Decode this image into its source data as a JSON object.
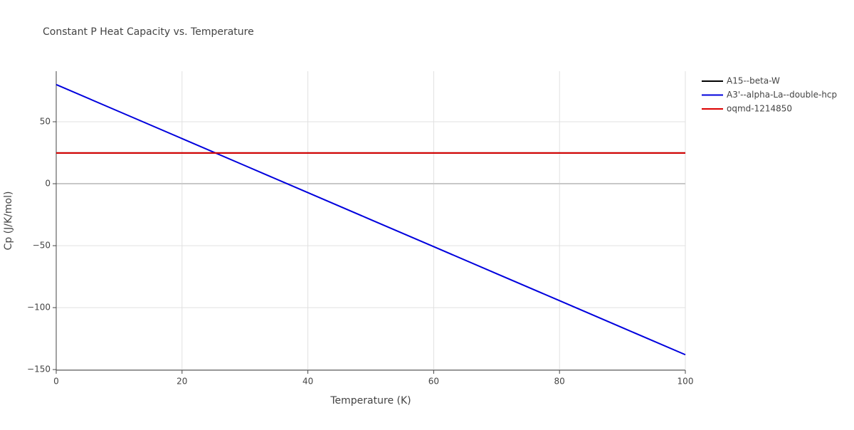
{
  "chart_data": {
    "type": "line",
    "title": "Constant P Heat Capacity vs. Temperature",
    "x_label": "Temperature (K)",
    "y_label": "Cp (J/K/mol)",
    "x": [
      0,
      10,
      20,
      30,
      40,
      50,
      60,
      70,
      80,
      90,
      100
    ],
    "series": [
      {
        "name": "A15--beta-W",
        "color": "#000000",
        "values": [
          24.8,
          24.8,
          24.8,
          24.8,
          24.8,
          24.8,
          24.8,
          24.8,
          24.8,
          24.8,
          24.8
        ]
      },
      {
        "name": "A3'--alpha-La--double-hcp",
        "color": "#0000dd",
        "values": [
          80,
          58.2,
          36.4,
          14.6,
          -7.2,
          -29,
          -50.8,
          -72.6,
          -94.4,
          -116.2,
          -138
        ]
      },
      {
        "name": "oqmd-1214850",
        "color": "#dd0000",
        "values": [
          24.8,
          24.8,
          24.8,
          24.8,
          24.8,
          24.8,
          24.8,
          24.8,
          24.8,
          24.8,
          24.8
        ]
      }
    ],
    "xlim": [
      0,
      100
    ],
    "xticks": [
      0,
      20,
      40,
      60,
      80,
      100
    ],
    "ylim": [
      -150.5,
      90.8
    ],
    "yticks": [
      {
        "value": -150,
        "label": "−150"
      },
      {
        "value": -100,
        "label": "−100"
      },
      {
        "value": -50,
        "label": "−50"
      },
      0,
      50
    ],
    "grid": true,
    "legend": "right"
  }
}
